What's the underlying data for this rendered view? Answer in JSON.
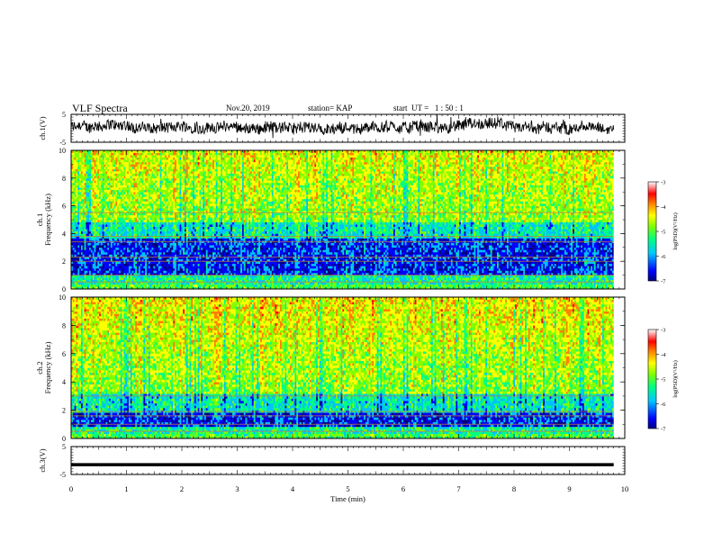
{
  "header": {
    "title": "VLF Spectra",
    "date": "Nov.20, 2019",
    "station": "station= KAP",
    "start": "start  UT =   1 : 50 : 1"
  },
  "chart_data": [
    {
      "type": "line",
      "panel": "top waveform",
      "ylabel": "ch.1(V)",
      "ylim": [
        -5,
        5
      ],
      "yticks": [
        "5",
        "-5"
      ],
      "x_range": [
        0,
        10
      ],
      "description_source": "noisy waveform",
      "waveform_mean": 0.3,
      "waveform_amplitude": 2.5
    },
    {
      "type": "heatmap",
      "panel": "ch.1 spectrogram",
      "ylabel": "ch.1\nFrequency  (kHz)",
      "ylim": [
        0,
        10
      ],
      "yticks": [
        "0",
        "2",
        "4",
        "6",
        "8",
        "10"
      ],
      "x_range": [
        0,
        10
      ],
      "colorbar": {
        "label": "log(PSD)(V²/Hz)",
        "range": [
          -7,
          -3
        ],
        "ticks": [
          "-3",
          "-4",
          "-5",
          "-6",
          "-7"
        ]
      },
      "lines_khz": [
        0.5,
        1.0,
        2.0,
        2.3,
        3.4,
        3.8,
        5.5
      ]
    },
    {
      "type": "heatmap",
      "panel": "ch.2 spectrogram",
      "ylabel": "ch.2\nFrequency  (kHz)",
      "ylim": [
        0,
        10
      ],
      "yticks": [
        "0",
        "2",
        "4",
        "6",
        "8",
        "10"
      ],
      "x_range": [
        0,
        10
      ],
      "colorbar": {
        "label": "log(PSD)(V²/Hz)",
        "range": [
          -7,
          -3
        ],
        "ticks": [
          "-3",
          "-4",
          "-5",
          "-6",
          "-7"
        ]
      },
      "lines_khz": [
        0.5,
        1.0,
        1.6,
        1.9,
        3.0
      ]
    },
    {
      "type": "line",
      "panel": "bottom waveform",
      "ylabel": "ch.3(V)",
      "ylim": [
        -5,
        5
      ],
      "yticks": [
        "5",
        "-5"
      ],
      "xlabel": "Time  (min)",
      "x_range": [
        0,
        10
      ],
      "xticks": [
        "0",
        "1",
        "2",
        "3",
        "4",
        "5",
        "6",
        "7",
        "8",
        "9",
        "10"
      ],
      "constant_value": -1.5
    }
  ],
  "colors": {
    "scale": [
      "#000080",
      "#0000ff",
      "#00c0ff",
      "#00ff80",
      "#80ff00",
      "#ffff00",
      "#ff8000",
      "#ff0000",
      "#ffffff"
    ]
  }
}
